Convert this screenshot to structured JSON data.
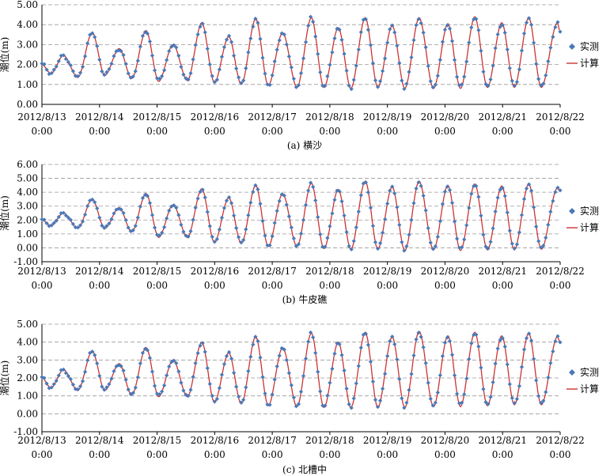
{
  "colors": {
    "observed": "#4a79b8",
    "computed": "#cc3333",
    "grid": "#999999",
    "axis": "#000000"
  },
  "x_tick_labels": [
    {
      "date": "2012/8/13",
      "time": "0:00"
    },
    {
      "date": "2012/8/14",
      "time": "0:00"
    },
    {
      "date": "2012/8/15",
      "time": "0:00"
    },
    {
      "date": "2012/8/16",
      "time": "0:00"
    },
    {
      "date": "2012/8/17",
      "time": "0:00"
    },
    {
      "date": "2012/8/18",
      "time": "0:00"
    },
    {
      "date": "2012/8/19",
      "time": "0:00"
    },
    {
      "date": "2012/8/20",
      "time": "0:00"
    },
    {
      "date": "2012/8/21",
      "time": "0:00"
    },
    {
      "date": "2012/8/22",
      "time": "0:00"
    }
  ],
  "chart_data": [
    {
      "type": "line",
      "caption": "(a) 横沙",
      "ylabel": "潮位(m)",
      "ylim": [
        0,
        5
      ],
      "yticks": [
        "0.00",
        "1.00",
        "2.00",
        "3.00",
        "4.00",
        "5.00"
      ],
      "xlim": [
        "2012/8/13 0:00",
        "2012/8/22 0:00"
      ],
      "grid": true,
      "legend_position": "right",
      "legend": [
        "实测",
        "计算"
      ],
      "peaks": [
        [
          1.2,
          2.45
        ],
        [
          2.8,
          3.6
        ],
        [
          4.3,
          2.8
        ],
        [
          5.8,
          3.7
        ],
        [
          7.3,
          3.0
        ],
        [
          8.9,
          4.1
        ],
        [
          10.4,
          3.4
        ],
        [
          11.9,
          4.3
        ],
        [
          13.4,
          3.6
        ],
        [
          15.0,
          4.35
        ],
        [
          16.5,
          3.85
        ],
        [
          18.0,
          4.35
        ],
        [
          19.5,
          3.95
        ],
        [
          21.0,
          4.35
        ],
        [
          22.6,
          4.05
        ],
        [
          24.1,
          4.4
        ],
        [
          25.6,
          4.1
        ],
        [
          27.1,
          4.35
        ],
        [
          28.7,
          4.1
        ]
      ],
      "troughs": [
        [
          0.5,
          1.55
        ],
        [
          2.0,
          1.35
        ],
        [
          3.5,
          1.45
        ],
        [
          5.0,
          1.3
        ],
        [
          6.5,
          1.15
        ],
        [
          8.1,
          1.2
        ],
        [
          9.6,
          1.1
        ],
        [
          11.1,
          1.0
        ],
        [
          12.6,
          0.95
        ],
        [
          14.2,
          0.85
        ],
        [
          15.7,
          0.85
        ],
        [
          17.2,
          0.8
        ],
        [
          18.7,
          0.85
        ],
        [
          20.2,
          0.8
        ],
        [
          21.8,
          0.8
        ],
        [
          23.3,
          0.8
        ],
        [
          24.8,
          0.85
        ],
        [
          26.3,
          0.85
        ],
        [
          27.8,
          0.85
        ],
        [
          28.85,
          3.6
        ]
      ],
      "series": [
        {
          "name": "实测",
          "style": "diamond markers, sampled hourly",
          "model": "observed tide, same phases as computed with slight amplitude offsets"
        },
        {
          "name": "计算",
          "style": "solid line",
          "model": "computed tide"
        }
      ]
    },
    {
      "type": "line",
      "caption": "(b) 牛皮礁",
      "ylabel": "潮位(m)",
      "ylim": [
        -1,
        6
      ],
      "yticks": [
        "-1.00",
        "0.00",
        "1.00",
        "2.00",
        "3.00",
        "4.00",
        "5.00",
        "6.00"
      ],
      "xlim": [
        "2012/8/13 0:00",
        "2012/8/22 0:00"
      ],
      "grid": true,
      "legend_position": "right",
      "legend": [
        "实测",
        "计算"
      ],
      "peaks": [
        [
          1.2,
          2.5
        ],
        [
          2.8,
          3.5
        ],
        [
          4.3,
          2.9
        ],
        [
          5.8,
          3.9
        ],
        [
          7.3,
          3.1
        ],
        [
          8.9,
          4.25
        ],
        [
          10.4,
          3.6
        ],
        [
          11.9,
          4.5
        ],
        [
          13.4,
          3.9
        ],
        [
          15.0,
          4.65
        ],
        [
          16.5,
          4.2
        ],
        [
          18.0,
          4.8
        ],
        [
          19.5,
          4.4
        ],
        [
          21.0,
          4.8
        ],
        [
          22.6,
          4.5
        ],
        [
          24.1,
          4.6
        ],
        [
          25.6,
          4.45
        ],
        [
          27.1,
          4.6
        ],
        [
          28.7,
          4.3
        ]
      ],
      "troughs": [
        [
          0.5,
          1.6
        ],
        [
          2.0,
          1.4
        ],
        [
          3.5,
          1.4
        ],
        [
          5.0,
          1.15
        ],
        [
          6.5,
          0.75
        ],
        [
          8.1,
          0.75
        ],
        [
          9.6,
          0.4
        ],
        [
          11.1,
          0.3
        ],
        [
          12.6,
          0.1
        ],
        [
          14.2,
          0.1
        ],
        [
          15.7,
          -0.05
        ],
        [
          17.2,
          -0.1
        ],
        [
          18.7,
          -0.1
        ],
        [
          20.2,
          -0.2
        ],
        [
          21.8,
          -0.15
        ],
        [
          23.3,
          -0.2
        ],
        [
          24.8,
          -0.15
        ],
        [
          26.3,
          -0.15
        ],
        [
          27.8,
          -0.1
        ],
        [
          28.85,
          4.1
        ]
      ],
      "series": [
        {
          "name": "实测",
          "style": "diamond markers, sampled hourly",
          "model": "observed tide"
        },
        {
          "name": "计算",
          "style": "solid line",
          "model": "computed tide"
        }
      ]
    },
    {
      "type": "line",
      "caption": "(c) 北槽中",
      "ylabel": "潮位(m)",
      "ylim": [
        -1,
        5
      ],
      "yticks": [
        "-1.00",
        "0.00",
        "1.00",
        "2.00",
        "3.00",
        "4.00",
        "5.00"
      ],
      "xlim": [
        "2012/8/13 0:00",
        "2012/8/22 0:00"
      ],
      "grid": true,
      "legend_position": "right",
      "legend": [
        "实测",
        "计算"
      ],
      "peaks": [
        [
          1.2,
          2.45
        ],
        [
          2.8,
          3.5
        ],
        [
          4.3,
          2.8
        ],
        [
          5.8,
          3.7
        ],
        [
          7.3,
          3.0
        ],
        [
          8.9,
          4.0
        ],
        [
          10.4,
          3.4
        ],
        [
          11.9,
          4.3
        ],
        [
          13.4,
          3.7
        ],
        [
          15.0,
          4.5
        ],
        [
          16.5,
          4.0
        ],
        [
          18.0,
          4.55
        ],
        [
          19.5,
          4.3
        ],
        [
          21.0,
          4.6
        ],
        [
          22.6,
          4.35
        ],
        [
          24.1,
          4.55
        ],
        [
          25.6,
          4.35
        ],
        [
          27.1,
          4.5
        ],
        [
          28.7,
          4.3
        ]
      ],
      "troughs": [
        [
          0.5,
          1.45
        ],
        [
          2.0,
          1.3
        ],
        [
          3.5,
          1.3
        ],
        [
          5.0,
          1.05
        ],
        [
          6.5,
          0.95
        ],
        [
          8.1,
          0.95
        ],
        [
          9.6,
          0.65
        ],
        [
          11.1,
          0.55
        ],
        [
          12.6,
          0.45
        ],
        [
          14.2,
          0.4
        ],
        [
          15.7,
          0.35
        ],
        [
          17.2,
          0.35
        ],
        [
          18.7,
          0.35
        ],
        [
          20.2,
          0.35
        ],
        [
          21.8,
          0.4
        ],
        [
          23.3,
          0.4
        ],
        [
          24.8,
          0.45
        ],
        [
          26.3,
          0.5
        ],
        [
          27.8,
          0.5
        ],
        [
          28.85,
          3.95
        ]
      ],
      "series": [
        {
          "name": "实测",
          "style": "diamond markers, sampled hourly",
          "model": "observed tide"
        },
        {
          "name": "计算",
          "style": "solid line",
          "model": "computed tide"
        }
      ]
    }
  ]
}
